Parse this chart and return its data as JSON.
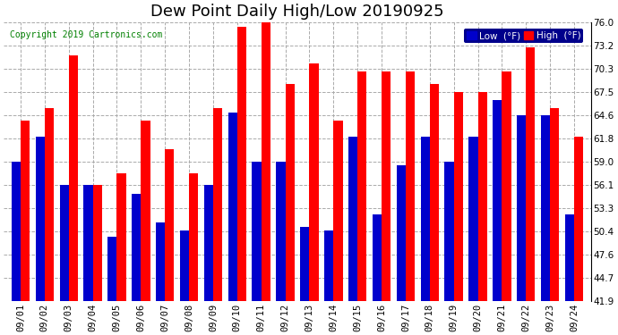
{
  "title": "Dew Point Daily High/Low 20190925",
  "copyright": "Copyright 2019 Cartronics.com",
  "dates": [
    "09/01",
    "09/02",
    "09/03",
    "09/04",
    "09/05",
    "09/06",
    "09/07",
    "09/08",
    "09/09",
    "09/10",
    "09/11",
    "09/12",
    "09/13",
    "09/14",
    "09/15",
    "09/16",
    "09/17",
    "09/18",
    "09/19",
    "09/20",
    "09/21",
    "09/22",
    "09/23",
    "09/24"
  ],
  "low_values": [
    59.0,
    62.0,
    56.1,
    56.1,
    49.8,
    55.0,
    51.5,
    50.5,
    56.1,
    65.0,
    59.0,
    59.0,
    51.0,
    50.5,
    62.0,
    52.5,
    58.5,
    62.0,
    59.0,
    62.0,
    66.5,
    64.6,
    64.6,
    52.5
  ],
  "high_values": [
    64.0,
    65.5,
    72.0,
    56.1,
    57.5,
    64.0,
    60.5,
    57.5,
    65.5,
    75.5,
    76.0,
    68.5,
    71.0,
    64.0,
    70.0,
    70.0,
    70.0,
    68.5,
    67.5,
    67.5,
    70.0,
    73.0,
    65.5,
    62.0
  ],
  "low_color": "#0000cc",
  "high_color": "#ff0000",
  "background_color": "#ffffff",
  "grid_color": "#aaaaaa",
  "ymin": 41.9,
  "ymax": 76.0,
  "yticks": [
    41.9,
    44.7,
    47.6,
    50.4,
    53.3,
    56.1,
    59.0,
    61.8,
    64.6,
    67.5,
    70.3,
    73.2,
    76.0
  ],
  "title_fontsize": 13,
  "tick_fontsize": 7.5,
  "bar_width": 0.38,
  "legend_facecolor": "#00008b",
  "copyright_color": "#008000"
}
